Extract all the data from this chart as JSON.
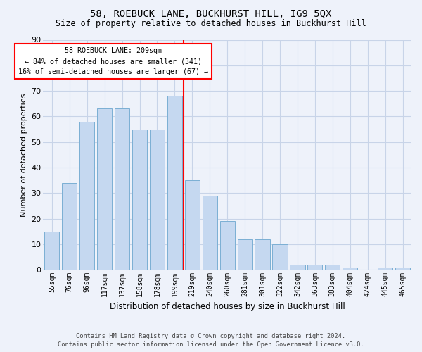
{
  "title": "58, ROEBUCK LANE, BUCKHURST HILL, IG9 5QX",
  "subtitle": "Size of property relative to detached houses in Buckhurst Hill",
  "xlabel": "Distribution of detached houses by size in Buckhurst Hill",
  "ylabel": "Number of detached properties",
  "footer_line1": "Contains HM Land Registry data © Crown copyright and database right 2024.",
  "footer_line2": "Contains public sector information licensed under the Open Government Licence v3.0.",
  "bar_labels": [
    "55sqm",
    "76sqm",
    "96sqm",
    "117sqm",
    "137sqm",
    "158sqm",
    "178sqm",
    "199sqm",
    "219sqm",
    "240sqm",
    "260sqm",
    "281sqm",
    "301sqm",
    "322sqm",
    "342sqm",
    "363sqm",
    "383sqm",
    "404sqm",
    "424sqm",
    "445sqm",
    "465sqm"
  ],
  "bar_values": [
    15,
    34,
    58,
    63,
    63,
    55,
    55,
    68,
    35,
    29,
    19,
    12,
    12,
    10,
    2,
    2,
    2,
    1,
    0,
    1,
    1
  ],
  "bar_color": "#c5d8f0",
  "bar_edge_color": "#7bafd4",
  "vline_color": "red",
  "annotation_title": "58 ROEBUCK LANE: 209sqm",
  "annotation_line1": "← 84% of detached houses are smaller (341)",
  "annotation_line2": "16% of semi-detached houses are larger (67) →",
  "annotation_box_color": "white",
  "annotation_box_edge_color": "red",
  "ylim": [
    0,
    90
  ],
  "yticks": [
    0,
    10,
    20,
    30,
    40,
    50,
    60,
    70,
    80,
    90
  ],
  "bg_color": "#eef2fa",
  "plot_bg_color": "#eef2fa",
  "grid_color": "#c8d4e8"
}
